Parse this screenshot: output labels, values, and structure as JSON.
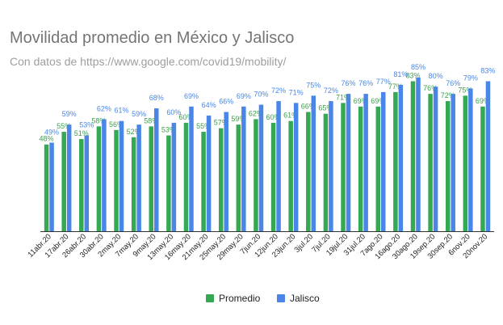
{
  "chart_data": {
    "type": "bar",
    "title": "Movilidad promedio en México y Jalisco",
    "subtitle": "Con datos de https://www.google.com/covid19/mobility/",
    "xlabel": "",
    "ylabel": "",
    "ylim": [
      0,
      85
    ],
    "legend_position": "bottom",
    "grid": false,
    "categories": [
      "11abr.20",
      "17abr.20",
      "26abr.20",
      "30abr.20",
      "2may.20",
      "7may.20",
      "9may.20",
      "13may.20",
      "16may.20",
      "21may.20",
      "25may.20",
      "29may.20",
      "7jun.20",
      "12jun.20",
      "23jun.20",
      "3jul.20",
      "7jul.20",
      "19jul.20",
      "31jul.20",
      "7ago.20",
      "16ago.20",
      "30ago.20",
      "19sep.20",
      "30sep.20",
      "6nov.20",
      "20nov.20"
    ],
    "series": [
      {
        "name": "Promedio",
        "color": "#34a853",
        "values": [
          48,
          55,
          51,
          58,
          56,
          52,
          58,
          53,
          60,
          55,
          57,
          59,
          62,
          60,
          61,
          66,
          65,
          71,
          69,
          69,
          77,
          83,
          76,
          72,
          75,
          69
        ]
      },
      {
        "name": "Jalisco",
        "color": "#4a86e8",
        "values": [
          49,
          59,
          53,
          62,
          61,
          59,
          68,
          60,
          69,
          64,
          66,
          69,
          70,
          72,
          71,
          75,
          72,
          76,
          76,
          77,
          81,
          85,
          80,
          76,
          79,
          83
        ]
      }
    ]
  }
}
